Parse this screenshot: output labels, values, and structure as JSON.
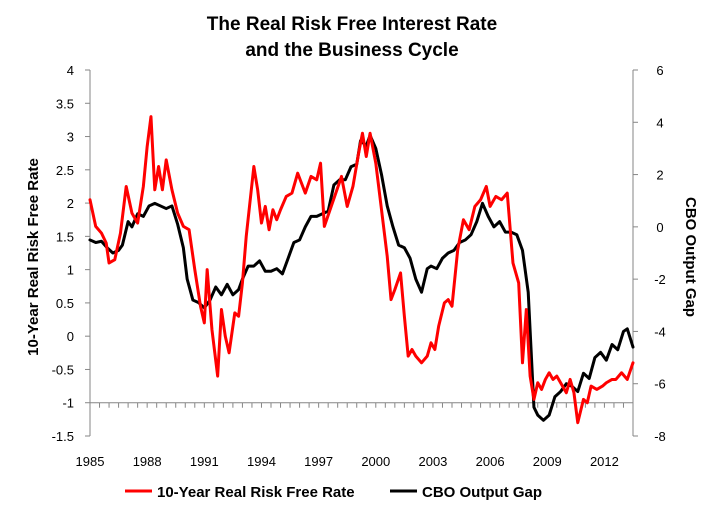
{
  "chart_data": {
    "type": "line",
    "title": [
      "The Real Risk Free Interest Rate",
      "and the Business Cycle"
    ],
    "ylabel": "10-Year Real Risk Free Rate",
    "y2label": "CBO Output Gap",
    "xlim": [
      1985,
      2013.5
    ],
    "ylim": [
      -1.5,
      4
    ],
    "y2lim": [
      -8,
      6
    ],
    "x_ticks": [
      "1985",
      "1988",
      "1991",
      "1994",
      "1997",
      "2000",
      "2003",
      "2006",
      "2009",
      "2012"
    ],
    "y_ticks": [
      "4",
      "3.5",
      "3",
      "2.5",
      "2",
      "1.5",
      "1",
      "0.5",
      "0",
      "-0.5",
      "-1",
      "-1.5"
    ],
    "y2_ticks": [
      "6",
      "4",
      "2",
      "0",
      "-2",
      "-4",
      "-6",
      "-8"
    ],
    "legend_position": "bottom",
    "series": [
      {
        "name": "10-Year Real Risk Free Rate",
        "color": "#ff0000",
        "axis": "left",
        "points": [
          [
            1985.0,
            2.05
          ],
          [
            1985.3,
            1.65
          ],
          [
            1985.6,
            1.55
          ],
          [
            1985.85,
            1.4
          ],
          [
            1986.0,
            1.1
          ],
          [
            1986.3,
            1.15
          ],
          [
            1986.6,
            1.55
          ],
          [
            1986.9,
            2.25
          ],
          [
            1987.2,
            1.85
          ],
          [
            1987.5,
            1.7
          ],
          [
            1987.8,
            2.25
          ],
          [
            1988.0,
            2.85
          ],
          [
            1988.2,
            3.3
          ],
          [
            1988.4,
            2.2
          ],
          [
            1988.6,
            2.55
          ],
          [
            1988.8,
            2.2
          ],
          [
            1989.0,
            2.65
          ],
          [
            1989.3,
            2.2
          ],
          [
            1989.6,
            1.85
          ],
          [
            1989.9,
            1.65
          ],
          [
            1990.2,
            1.6
          ],
          [
            1990.5,
            1.0
          ],
          [
            1990.8,
            0.45
          ],
          [
            1991.0,
            0.2
          ],
          [
            1991.15,
            1.0
          ],
          [
            1991.4,
            0.1
          ],
          [
            1991.7,
            -0.6
          ],
          [
            1991.9,
            0.4
          ],
          [
            1992.1,
            0.0
          ],
          [
            1992.3,
            -0.25
          ],
          [
            1992.6,
            0.35
          ],
          [
            1992.8,
            0.3
          ],
          [
            1993.0,
            0.8
          ],
          [
            1993.2,
            1.5
          ],
          [
            1993.6,
            2.55
          ],
          [
            1993.8,
            2.2
          ],
          [
            1994.0,
            1.7
          ],
          [
            1994.2,
            1.95
          ],
          [
            1994.4,
            1.6
          ],
          [
            1994.6,
            1.9
          ],
          [
            1994.8,
            1.75
          ],
          [
            1995.0,
            1.9
          ],
          [
            1995.3,
            2.1
          ],
          [
            1995.6,
            2.15
          ],
          [
            1995.9,
            2.45
          ],
          [
            1996.1,
            2.3
          ],
          [
            1996.3,
            2.15
          ],
          [
            1996.6,
            2.4
          ],
          [
            1996.9,
            2.35
          ],
          [
            1997.1,
            2.6
          ],
          [
            1997.3,
            1.65
          ],
          [
            1997.6,
            1.9
          ],
          [
            1997.9,
            2.15
          ],
          [
            1998.2,
            2.4
          ],
          [
            1998.5,
            1.95
          ],
          [
            1998.8,
            2.25
          ],
          [
            1999.1,
            2.75
          ],
          [
            1999.3,
            3.05
          ],
          [
            1999.5,
            2.7
          ],
          [
            1999.7,
            3.05
          ],
          [
            2000.0,
            2.6
          ],
          [
            2000.3,
            1.9
          ],
          [
            2000.6,
            1.2
          ],
          [
            2000.8,
            0.55
          ],
          [
            2001.0,
            0.7
          ],
          [
            2001.3,
            0.95
          ],
          [
            2001.5,
            0.3
          ],
          [
            2001.7,
            -0.3
          ],
          [
            2001.9,
            -0.2
          ],
          [
            2002.1,
            -0.3
          ],
          [
            2002.4,
            -0.4
          ],
          [
            2002.7,
            -0.3
          ],
          [
            2002.9,
            -0.1
          ],
          [
            2003.1,
            -0.2
          ],
          [
            2003.3,
            0.15
          ],
          [
            2003.6,
            0.5
          ],
          [
            2003.8,
            0.55
          ],
          [
            2004.0,
            0.45
          ],
          [
            2004.3,
            1.3
          ],
          [
            2004.6,
            1.75
          ],
          [
            2004.9,
            1.6
          ],
          [
            2005.2,
            1.95
          ],
          [
            2005.5,
            2.05
          ],
          [
            2005.8,
            2.25
          ],
          [
            2006.0,
            1.95
          ],
          [
            2006.3,
            2.1
          ],
          [
            2006.6,
            2.05
          ],
          [
            2006.9,
            2.15
          ],
          [
            2007.2,
            1.1
          ],
          [
            2007.5,
            0.8
          ],
          [
            2007.7,
            -0.4
          ],
          [
            2007.9,
            0.4
          ],
          [
            2008.1,
            -0.6
          ],
          [
            2008.3,
            -0.95
          ],
          [
            2008.5,
            -0.7
          ],
          [
            2008.7,
            -0.8
          ],
          [
            2008.9,
            -0.65
          ],
          [
            2009.1,
            -0.55
          ],
          [
            2009.3,
            -0.65
          ],
          [
            2009.5,
            -0.6
          ],
          [
            2009.8,
            -0.75
          ],
          [
            2010.0,
            -0.85
          ],
          [
            2010.2,
            -0.65
          ],
          [
            2010.4,
            -0.85
          ],
          [
            2010.6,
            -1.3
          ],
          [
            2010.9,
            -0.95
          ],
          [
            2011.1,
            -1.0
          ],
          [
            2011.3,
            -0.75
          ],
          [
            2011.6,
            -0.8
          ],
          [
            2011.9,
            -0.75
          ],
          [
            2012.1,
            -0.7
          ],
          [
            2012.4,
            -0.65
          ],
          [
            2012.6,
            -0.65
          ],
          [
            2012.9,
            -0.55
          ],
          [
            2013.2,
            -0.65
          ],
          [
            2013.5,
            -0.4
          ]
        ]
      },
      {
        "name": "CBO Output Gap",
        "color": "#000000",
        "axis": "right",
        "points": [
          [
            1985.0,
            -0.5
          ],
          [
            1985.3,
            -0.6
          ],
          [
            1985.6,
            -0.55
          ],
          [
            1985.9,
            -0.8
          ],
          [
            1986.2,
            -1.0
          ],
          [
            1986.5,
            -0.9
          ],
          [
            1986.7,
            -0.7
          ],
          [
            1987.0,
            0.2
          ],
          [
            1987.2,
            0.0
          ],
          [
            1987.5,
            0.5
          ],
          [
            1987.8,
            0.4
          ],
          [
            1988.1,
            0.8
          ],
          [
            1988.4,
            0.9
          ],
          [
            1988.7,
            0.8
          ],
          [
            1989.0,
            0.7
          ],
          [
            1989.3,
            0.8
          ],
          [
            1989.6,
            0.1
          ],
          [
            1989.9,
            -0.8
          ],
          [
            1990.1,
            -2.0
          ],
          [
            1990.4,
            -2.8
          ],
          [
            1990.7,
            -2.9
          ],
          [
            1991.0,
            -3.1
          ],
          [
            1991.3,
            -2.8
          ],
          [
            1991.6,
            -2.3
          ],
          [
            1991.9,
            -2.6
          ],
          [
            1992.2,
            -2.2
          ],
          [
            1992.5,
            -2.6
          ],
          [
            1992.8,
            -2.4
          ],
          [
            1993.0,
            -2.0
          ],
          [
            1993.3,
            -1.5
          ],
          [
            1993.6,
            -1.5
          ],
          [
            1993.9,
            -1.3
          ],
          [
            1994.2,
            -1.7
          ],
          [
            1994.5,
            -1.7
          ],
          [
            1994.8,
            -1.6
          ],
          [
            1995.1,
            -1.8
          ],
          [
            1995.4,
            -1.2
          ],
          [
            1995.7,
            -0.6
          ],
          [
            1996.0,
            -0.5
          ],
          [
            1996.3,
            0.0
          ],
          [
            1996.6,
            0.4
          ],
          [
            1996.9,
            0.4
          ],
          [
            1997.2,
            0.5
          ],
          [
            1997.5,
            0.6
          ],
          [
            1997.8,
            1.6
          ],
          [
            1998.1,
            1.8
          ],
          [
            1998.4,
            1.8
          ],
          [
            1998.7,
            2.3
          ],
          [
            1999.0,
            2.4
          ],
          [
            1999.2,
            3.3
          ],
          [
            1999.5,
            3.1
          ],
          [
            1999.7,
            3.5
          ],
          [
            2000.0,
            3.0
          ],
          [
            2000.3,
            2.0
          ],
          [
            2000.6,
            0.8
          ],
          [
            2000.9,
            0.0
          ],
          [
            2001.2,
            -0.7
          ],
          [
            2001.5,
            -0.8
          ],
          [
            2001.8,
            -1.2
          ],
          [
            2002.1,
            -2.0
          ],
          [
            2002.4,
            -2.5
          ],
          [
            2002.7,
            -1.6
          ],
          [
            2002.9,
            -1.5
          ],
          [
            2003.2,
            -1.6
          ],
          [
            2003.5,
            -1.2
          ],
          [
            2003.8,
            -1.0
          ],
          [
            2004.1,
            -0.9
          ],
          [
            2004.4,
            -0.6
          ],
          [
            2004.7,
            -0.5
          ],
          [
            2005.0,
            -0.3
          ],
          [
            2005.3,
            0.2
          ],
          [
            2005.6,
            0.9
          ],
          [
            2005.9,
            0.4
          ],
          [
            2006.2,
            0.0
          ],
          [
            2006.5,
            0.2
          ],
          [
            2006.8,
            -0.2
          ],
          [
            2007.1,
            -0.2
          ],
          [
            2007.4,
            -0.3
          ],
          [
            2007.7,
            -0.9
          ],
          [
            2008.0,
            -2.5
          ],
          [
            2008.3,
            -6.9
          ],
          [
            2008.5,
            -7.2
          ],
          [
            2008.8,
            -7.4
          ],
          [
            2009.1,
            -7.2
          ],
          [
            2009.4,
            -6.5
          ],
          [
            2009.7,
            -6.3
          ],
          [
            2010.0,
            -6.0
          ],
          [
            2010.3,
            -6.1
          ],
          [
            2010.6,
            -6.3
          ],
          [
            2010.9,
            -5.6
          ],
          [
            2011.2,
            -5.8
          ],
          [
            2011.5,
            -5.0
          ],
          [
            2011.8,
            -4.8
          ],
          [
            2012.1,
            -5.1
          ],
          [
            2012.4,
            -4.5
          ],
          [
            2012.7,
            -4.7
          ],
          [
            2013.0,
            -4.0
          ],
          [
            2013.2,
            -3.9
          ],
          [
            2013.5,
            -4.6
          ]
        ]
      }
    ]
  }
}
